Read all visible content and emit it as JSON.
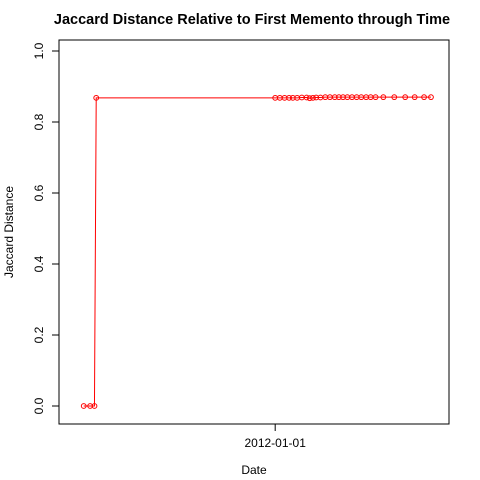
{
  "chart_data": {
    "type": "line",
    "title": "Jaccard Distance Relative to First Memento through Time",
    "xlabel": "Date",
    "ylabel": "Jaccard Distance",
    "x_type": "date",
    "xlim": [
      "2006-06-12",
      "2016-06-06"
    ],
    "ylim": [
      0,
      1
    ],
    "x_ticks": [
      {
        "value": "2012-01-01",
        "label": "2012-01-01"
      }
    ],
    "y_ticks": [
      {
        "value": 0.0,
        "label": "0.0"
      },
      {
        "value": 0.2,
        "label": "0.2"
      },
      {
        "value": 0.4,
        "label": "0.4"
      },
      {
        "value": 0.6,
        "label": "0.6"
      },
      {
        "value": 0.8,
        "label": "0.8"
      },
      {
        "value": 1.0,
        "label": "1.0"
      }
    ],
    "grid": false,
    "color": "#ff0000",
    "series": [
      {
        "points": [
          {
            "x": "2006-12-01",
            "y": 0.0
          },
          {
            "x": "2007-02-01",
            "y": 0.0
          },
          {
            "x": "2007-03-15",
            "y": 0.0
          },
          {
            "x": "2007-04-01",
            "y": 0.868
          },
          {
            "x": "2012-01-01",
            "y": 0.868
          },
          {
            "x": "2012-02-15",
            "y": 0.868
          },
          {
            "x": "2012-04-01",
            "y": 0.868
          },
          {
            "x": "2012-05-15",
            "y": 0.868
          },
          {
            "x": "2012-06-20",
            "y": 0.868
          },
          {
            "x": "2012-08-01",
            "y": 0.868
          },
          {
            "x": "2012-09-15",
            "y": 0.869
          },
          {
            "x": "2012-11-01",
            "y": 0.869
          },
          {
            "x": "2012-12-01",
            "y": 0.867
          },
          {
            "x": "2013-01-01",
            "y": 0.868
          },
          {
            "x": "2013-02-01",
            "y": 0.869
          },
          {
            "x": "2013-03-15",
            "y": 0.869
          },
          {
            "x": "2013-05-01",
            "y": 0.87
          },
          {
            "x": "2013-06-15",
            "y": 0.87
          },
          {
            "x": "2013-08-01",
            "y": 0.87
          },
          {
            "x": "2013-09-10",
            "y": 0.87
          },
          {
            "x": "2013-10-20",
            "y": 0.87
          },
          {
            "x": "2013-12-01",
            "y": 0.87
          },
          {
            "x": "2014-01-15",
            "y": 0.87
          },
          {
            "x": "2014-03-01",
            "y": 0.87
          },
          {
            "x": "2014-04-15",
            "y": 0.87
          },
          {
            "x": "2014-06-01",
            "y": 0.87
          },
          {
            "x": "2014-07-15",
            "y": 0.87
          },
          {
            "x": "2014-09-01",
            "y": 0.87
          },
          {
            "x": "2014-11-15",
            "y": 0.87
          },
          {
            "x": "2015-03-01",
            "y": 0.87
          },
          {
            "x": "2015-06-15",
            "y": 0.87
          },
          {
            "x": "2015-09-15",
            "y": 0.87
          },
          {
            "x": "2015-12-15",
            "y": 0.87
          },
          {
            "x": "2016-02-20",
            "y": 0.87
          }
        ]
      }
    ]
  }
}
